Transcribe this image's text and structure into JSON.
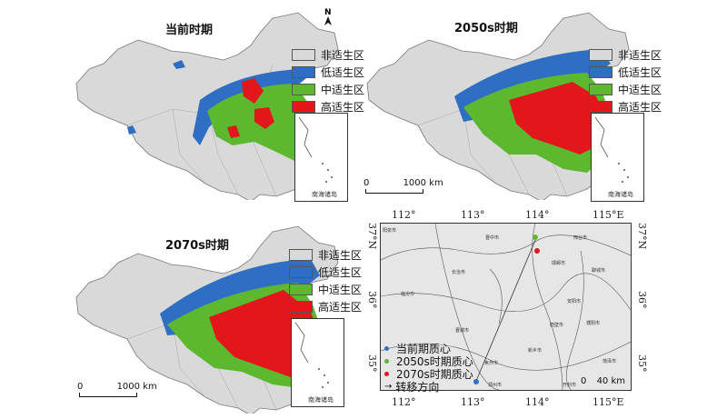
{
  "legend": {
    "items": [
      {
        "label": "非适生区",
        "color": "#d9d9d9"
      },
      {
        "label": "低适生区",
        "color": "#2e6fc4"
      },
      {
        "label": "中适生区",
        "color": "#5cb82e"
      },
      {
        "label": "高适生区",
        "color": "#e3161b"
      }
    ]
  },
  "panels": {
    "current": {
      "title": "当前时期"
    },
    "s2050": {
      "title": "2050s时期"
    },
    "s2070": {
      "title": "2070s时期"
    }
  },
  "north": "N",
  "inset_label": "南海诸岛",
  "scale": {
    "zero": "0",
    "value": "1000 km"
  },
  "zoom": {
    "x_ticks": [
      "112°",
      "113°",
      "114°",
      "115°E"
    ],
    "y_ticks": [
      "37°N",
      "36°",
      "35°"
    ],
    "scale_zero": "0",
    "scale_value": "40 km",
    "legend": [
      {
        "label": "当前期质心",
        "color": "#2e6fc4"
      },
      {
        "label": "2050s时期质心",
        "color": "#5cb82e"
      },
      {
        "label": "2070s时期质心",
        "color": "#e3161b"
      },
      {
        "label": "转移方向",
        "color": "#333333"
      }
    ],
    "city_labels": [
      "晋中市",
      "邢台市",
      "阳泉市",
      "邯郸市",
      "长治市",
      "临汾市",
      "聊城市",
      "安阳市",
      "晋城市",
      "鹤壁市",
      "濮阳市",
      "新乡市",
      "焦作市",
      "菏泽市",
      "郑州市",
      "开封市"
    ],
    "centroids": {
      "current": {
        "lon": 113.0,
        "lat": 34.85
      },
      "s2050": {
        "lon": 113.97,
        "lat": 36.92
      },
      "s2070": {
        "lon": 114.02,
        "lat": 36.75
      }
    }
  }
}
